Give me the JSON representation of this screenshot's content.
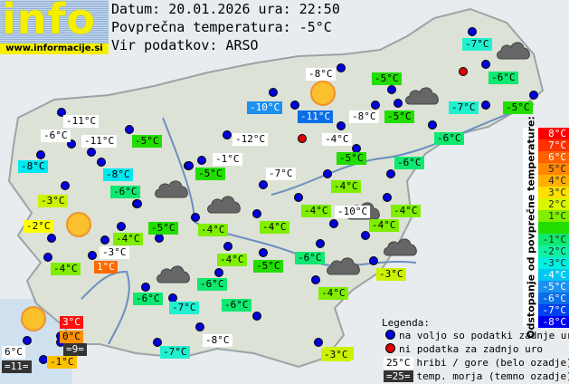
{
  "logo": {
    "text": "info",
    "url": "www.informacije.si"
  },
  "header": {
    "date_line": "Datum: 20.01.2026 ura: 22:50",
    "avg_line": "Povprečna temperatura: -5°C",
    "source_line": "Vir podatkov: ARSO"
  },
  "colors": {
    "station_ok": "#0000dd",
    "station_missing": "#dd0000",
    "mountain_bg": "#ffffff",
    "sea_bg": "#333333"
  },
  "stations": [
    {
      "t": "-11°C",
      "bg": "#ffffff"
    },
    {
      "t": "-6°C",
      "bg": "#ffffff"
    },
    {
      "t": "-11°C",
      "bg": "#ffffff"
    },
    {
      "t": "-5°C",
      "bg": "#22dd00"
    },
    {
      "t": "-8°C",
      "bg": "#00e8f0"
    },
    {
      "t": "-8°C",
      "bg": "#00e8f0"
    },
    {
      "t": "-6°C",
      "bg": "#10e870"
    },
    {
      "t": "-3°C",
      "bg": "#ccf200"
    },
    {
      "t": "-2°C",
      "bg": "#ffff00"
    },
    {
      "t": "-5°C",
      "bg": "#22dd00"
    },
    {
      "t": "-4°C",
      "bg": "#80ee00"
    },
    {
      "t": "-3°C",
      "bg": "#ffffff"
    },
    {
      "t": "-4°C",
      "bg": "#80ee00"
    },
    {
      "t": "1°C",
      "bg": "#ff6a00"
    },
    {
      "t": "-6°C",
      "bg": "#10e870"
    },
    {
      "t": "-7°C",
      "bg": "#20f0d0"
    },
    {
      "t": "-6°C",
      "bg": "#10e870"
    },
    {
      "t": "-6°C",
      "bg": "#10e870"
    },
    {
      "t": "3°C",
      "bg": "#ff1010"
    },
    {
      "t": "0°C",
      "bg": "#ff9000"
    },
    {
      "t": "=9=",
      "bg": "#333333"
    },
    {
      "t": "6°C",
      "bg": "#ffffff"
    },
    {
      "t": "=11=",
      "bg": "#333333"
    },
    {
      "t": "-1°C",
      "bg": "#ffc000"
    },
    {
      "t": "-7°C",
      "bg": "#20f0d0"
    },
    {
      "t": "-8°C",
      "bg": "#ffffff"
    },
    {
      "t": "-3°C",
      "bg": "#ccf200"
    },
    {
      "t": "-8°C",
      "bg": "#ffffff"
    },
    {
      "t": "-10°C",
      "bg": "#1e90f0"
    },
    {
      "t": "-11°C",
      "bg": "#0a6ee6"
    },
    {
      "t": "-12°C",
      "bg": "#ffffff"
    },
    {
      "t": "-1°C",
      "bg": "#ffffff"
    },
    {
      "t": "-5°C",
      "bg": "#22dd00"
    },
    {
      "t": "-7°C",
      "bg": "#ffffff"
    },
    {
      "t": "-4°C",
      "bg": "#ffffff"
    },
    {
      "t": "-8°C",
      "bg": "#ffffff"
    },
    {
      "t": "-5°C",
      "bg": "#22dd00"
    },
    {
      "t": "-5°C",
      "bg": "#22dd00"
    },
    {
      "t": "-5°C",
      "bg": "#22dd00"
    },
    {
      "t": "-6°C",
      "bg": "#10e870"
    },
    {
      "t": "-6°C",
      "bg": "#10e870"
    },
    {
      "t": "-7°C",
      "bg": "#20f0d0"
    },
    {
      "t": "-5°C",
      "bg": "#22dd00"
    },
    {
      "t": "-6°C",
      "bg": "#10e870"
    },
    {
      "t": "-7°C",
      "bg": "#20f0d0"
    },
    {
      "t": "-4°C",
      "bg": "#80ee00"
    },
    {
      "t": "-4°C",
      "bg": "#80ee00"
    },
    {
      "t": "-10°C",
      "bg": "#ffffff"
    },
    {
      "t": "-4°C",
      "bg": "#80ee00"
    },
    {
      "t": "-4°C",
      "bg": "#80ee00"
    },
    {
      "t": "-4°C",
      "bg": "#80ee00"
    },
    {
      "t": "-4°C",
      "bg": "#80ee00"
    },
    {
      "t": "-4°C",
      "bg": "#80ee00"
    },
    {
      "t": "-5°C",
      "bg": "#22dd00"
    },
    {
      "t": "-6°C",
      "bg": "#10e870"
    },
    {
      "t": "-4°C",
      "bg": "#80ee00"
    },
    {
      "t": "-3°C",
      "bg": "#ccf200"
    },
    {
      "t": "-3°C",
      "bg": "#ccf200"
    }
  ],
  "scale": {
    "title": "Odstopanje od povprečne temperature:",
    "rows": [
      {
        "t": "8°C",
        "bg": "#ff0000"
      },
      {
        "t": "7°C",
        "bg": "#ff3000"
      },
      {
        "t": "6°C",
        "bg": "#ff6000"
      },
      {
        "t": "5°C",
        "bg": "#ff8800"
      },
      {
        "t": "4°C",
        "bg": "#ffb000"
      },
      {
        "t": "3°C",
        "bg": "#ffe000"
      },
      {
        "t": "2°C",
        "bg": "#d8f800"
      },
      {
        "t": "1°C",
        "bg": "#80ee00"
      },
      {
        "t": "",
        "bg": "#22dd00"
      },
      {
        "t": "-1°C",
        "bg": "#10e870"
      },
      {
        "t": "-2°C",
        "bg": "#10f0a0"
      },
      {
        "t": "-3°C",
        "bg": "#00f0e0"
      },
      {
        "t": "-4°C",
        "bg": "#00c8f0"
      },
      {
        "t": "-5°C",
        "bg": "#1e90f0"
      },
      {
        "t": "-6°C",
        "bg": "#0a6ee6"
      },
      {
        "t": "-7°C",
        "bg": "#0040f0"
      },
      {
        "t": "-8°C",
        "bg": "#0000f0"
      }
    ]
  },
  "legend": {
    "title": "Legenda:",
    "ok": "na voljo so podatki zadnje ure",
    "missing": "ni podatka za zadnjo uro",
    "mountain_sample": "25°C",
    "mountain_text": "hribi / gore (belo ozadje)",
    "sea_sample": "=25=",
    "sea_text": "temp. morja (temno ozadje)"
  },
  "icons": {
    "sun": "sun-icon",
    "cloud": "cloud-icon"
  }
}
